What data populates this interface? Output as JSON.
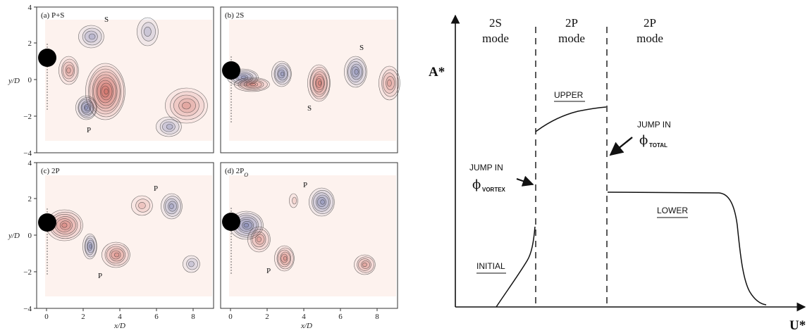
{
  "figure": {
    "panels": [
      {
        "id": "a",
        "title": "(a) P+S",
        "labels": [
          "S",
          "P"
        ]
      },
      {
        "id": "b",
        "title": "(b) 2S",
        "labels": [
          "S",
          "S"
        ]
      },
      {
        "id": "c",
        "title": "(c) 2P",
        "labels": [
          "P",
          "P"
        ]
      },
      {
        "id": "d",
        "title": "(d) 2P",
        "title_sub": "O",
        "labels": [
          "P",
          "P"
        ]
      }
    ],
    "y_label": "y/D",
    "x_label": "x/D",
    "y_ticks": [
      "4",
      "2",
      "0",
      "−2",
      "−4"
    ],
    "x_ticks": [
      "0",
      "2",
      "4",
      "6",
      "8"
    ],
    "colors": {
      "positive": "#c0392b",
      "negative": "#2c3e8f",
      "background": "#fdf2ee"
    }
  },
  "diagram": {
    "y_axis_label": "A*",
    "x_axis_label": "U*",
    "modes": [
      {
        "name": "2S",
        "word": "mode"
      },
      {
        "name": "2P",
        "word": "mode"
      },
      {
        "name": "2P",
        "word": "mode"
      }
    ],
    "branch_labels": {
      "upper": "UPPER",
      "lower": "LOWER",
      "initial": "INITIAL"
    },
    "jump_vortex": {
      "line1": "JUMP IN",
      "symbol": "ϕ",
      "sub": "VORTEX"
    },
    "jump_total": {
      "line1": "JUMP IN",
      "symbol": "ϕ",
      "sub": "TOTAL"
    }
  }
}
